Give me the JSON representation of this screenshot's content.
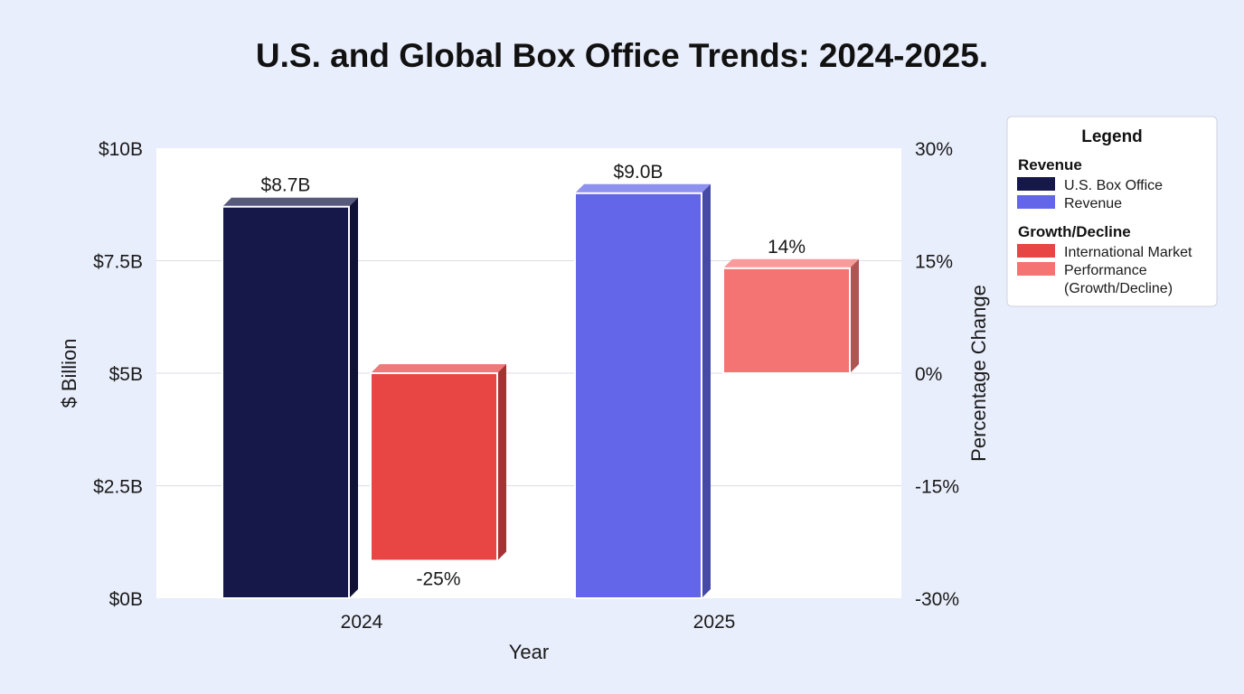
{
  "chart_data": {
    "type": "bar",
    "title": "U.S. and Global Box Office Trends: 2024-2025.",
    "xlabel": "Year",
    "ylabel": "$ Billion",
    "y2label": "Percentage Change",
    "categories": [
      "2024",
      "2025"
    ],
    "ylim": [
      0,
      10
    ],
    "y2lim": [
      -30,
      30
    ],
    "y_ticks": [
      "$0B",
      "$2.5B",
      "$5B",
      "$7.5B",
      "$10B"
    ],
    "y2_ticks": [
      "-30%",
      "-15%",
      "0%",
      "15%",
      "30%"
    ],
    "grid": true,
    "legend_position": "top-right",
    "series": [
      {
        "legend_label": "U.S. Box Office",
        "axis": "left",
        "values": [
          8.7,
          null
        ],
        "labels": [
          "$8.7B",
          ""
        ],
        "color": "#16184a"
      },
      {
        "legend_label": "Revenue",
        "axis": "left",
        "values": [
          null,
          9.0
        ],
        "labels": [
          "",
          "$9.0B"
        ],
        "color": "#6366e8"
      },
      {
        "legend_label": "International Market",
        "axis": "right",
        "values": [
          -25,
          null
        ],
        "labels": [
          "-25%",
          ""
        ],
        "color": "#e84545"
      },
      {
        "legend_label": "Performance (Growth/Decline)",
        "axis": "right",
        "values": [
          null,
          14
        ],
        "labels": [
          "",
          "14%"
        ],
        "color": "#f47474"
      }
    ],
    "legend": {
      "title": "Legend",
      "groups": [
        {
          "heading": "Revenue",
          "items": [
            {
              "lines": [
                "U.S. Box Office"
              ],
              "color": "#16184a"
            },
            {
              "lines": [
                "Revenue"
              ],
              "color": "#6366e8"
            }
          ]
        },
        {
          "heading": "Growth/Decline",
          "items": [
            {
              "lines": [
                "International Market"
              ],
              "color": "#e84545"
            },
            {
              "lines": [
                "Performance",
                "(Growth/Decline)"
              ],
              "color": "#f47474"
            }
          ]
        }
      ]
    }
  }
}
